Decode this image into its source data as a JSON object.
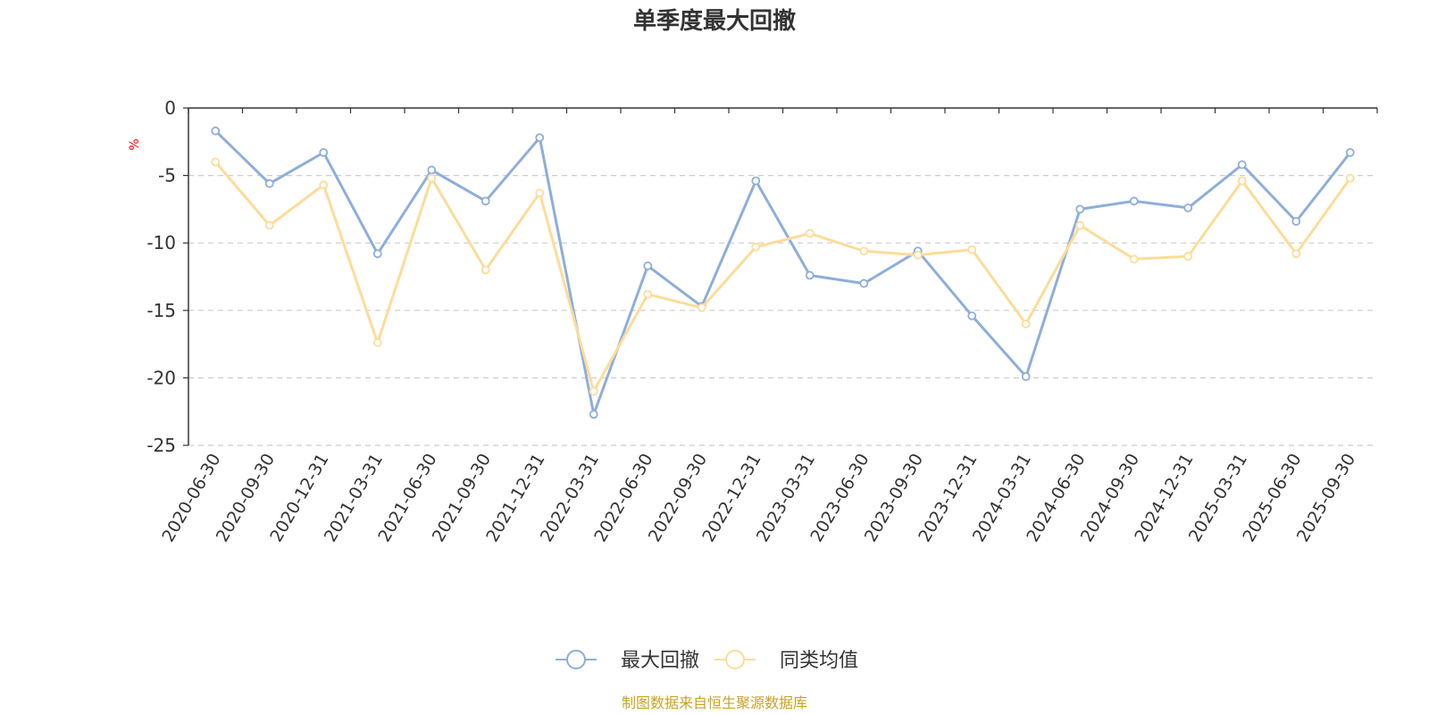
{
  "chart_data": {
    "type": "line",
    "title": "单季度最大回撤",
    "ylabel": "%",
    "ylim": [
      -25,
      0
    ],
    "yticks": [
      0,
      -5,
      -10,
      -15,
      -20,
      -25
    ],
    "grid": true,
    "legend_position": "bottom",
    "categories": [
      "2020-06-30",
      "2020-09-30",
      "2020-12-31",
      "2021-03-31",
      "2021-06-30",
      "2021-09-30",
      "2021-12-31",
      "2022-03-31",
      "2022-06-30",
      "2022-09-30",
      "2022-12-31",
      "2023-03-31",
      "2023-06-30",
      "2023-09-30",
      "2023-12-31",
      "2024-03-31",
      "2024-06-30",
      "2024-09-30",
      "2024-12-31",
      "2025-03-31",
      "2025-06-30",
      "2025-09-30"
    ],
    "series": [
      {
        "name": "最大回撤",
        "color": "#8eaedb",
        "values": [
          -1.7,
          -5.6,
          -3.3,
          -10.8,
          -4.6,
          -6.9,
          -2.2,
          -22.7,
          -11.7,
          -14.7,
          -5.4,
          -12.4,
          -13.0,
          -10.6,
          -15.4,
          -19.9,
          -7.5,
          -6.9,
          -7.4,
          -4.2,
          -8.4,
          -3.3
        ]
      },
      {
        "name": "同类均值",
        "color": "#fddc99",
        "values": [
          -4.0,
          -8.7,
          -5.7,
          -17.4,
          -5.2,
          -12.0,
          -6.3,
          -21.0,
          -13.8,
          -14.8,
          -10.3,
          -9.3,
          -10.6,
          -10.9,
          -10.5,
          -16.0,
          -8.7,
          -11.2,
          -11.0,
          -5.4,
          -10.8,
          -5.2
        ]
      }
    ],
    "source_note": "制图数据来自恒生聚源数据库",
    "colors": {
      "text": "#333333",
      "unit": "#ff0000",
      "source": "#c9a227",
      "grid": "#cccccc",
      "axis": "#333333"
    }
  }
}
